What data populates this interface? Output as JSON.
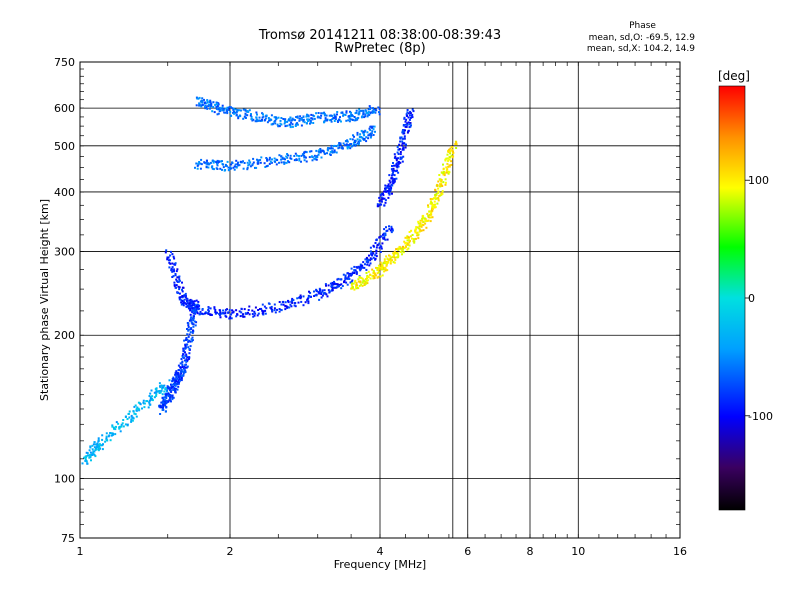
{
  "chart_data": {
    "type": "scatter",
    "title": "Tromsø 20141211 08:38:00-08:39:43",
    "subtitle": "RwPretec (8p)",
    "xlabel": "Frequency [MHz]",
    "ylabel": "Stationary phase Virtual Height [km]",
    "x_scale": "log",
    "y_scale": "log",
    "xlim": [
      1,
      16
    ],
    "ylim": [
      75,
      750
    ],
    "x_ticks": [
      "1",
      "2",
      "4",
      "6",
      "8",
      "10",
      "16"
    ],
    "y_ticks": [
      "75",
      "100",
      "200",
      "300",
      "400",
      "500",
      "600",
      "750"
    ],
    "grid": true,
    "colorbar": {
      "label": "[deg]",
      "range": [
        -180,
        180
      ],
      "ticks": [
        "100",
        "0",
        "-100"
      ]
    },
    "phase_info": {
      "title": "Phase",
      "line1": "mean, sd,O: -69.5, 12.9",
      "line2": "mean, sd,X: 104.2, 14.9"
    },
    "traces": [
      {
        "name": "",
        "freq": [
          1.72,
          2.0,
          2.5,
          3.0,
          3.5,
          3.9
        ],
        "height": [
          460,
          455,
          468,
          482,
          510,
          545
        ],
        "phase": -60
      },
      {
        "name": "",
        "freq": [
          1.72,
          1.9,
          2.2,
          2.6,
          3.0,
          3.5,
          3.95
        ],
        "height": [
          625,
          600,
          580,
          560,
          575,
          580,
          600
        ],
        "phase": -60
      },
      {
        "name": "",
        "freq": [
          1.5,
          1.6,
          1.7,
          2.0,
          2.5,
          3.0,
          3.4,
          3.8,
          4.2
        ],
        "height": [
          300,
          240,
          228,
          222,
          230,
          245,
          262,
          290,
          340
        ],
        "phase": -90
      },
      {
        "name": "",
        "freq": [
          3.5,
          3.9,
          4.2,
          4.6,
          5.0,
          5.3,
          5.6
        ],
        "height": [
          255,
          270,
          290,
          320,
          360,
          420,
          510
        ],
        "phase": 100
      },
      {
        "name": "",
        "freq": [
          4.0,
          4.2,
          4.4,
          4.6
        ],
        "height": [
          380,
          420,
          500,
          600
        ],
        "phase": -90
      },
      {
        "name": "",
        "freq": [
          1.45,
          1.5,
          1.55,
          1.6,
          1.65,
          1.7
        ],
        "height": [
          140,
          150,
          160,
          170,
          200,
          240
        ],
        "phase": -80
      },
      {
        "name": "",
        "freq": [
          1.02,
          1.1,
          1.3,
          1.5
        ],
        "height": [
          110,
          120,
          140,
          160
        ],
        "phase": -30
      }
    ]
  }
}
